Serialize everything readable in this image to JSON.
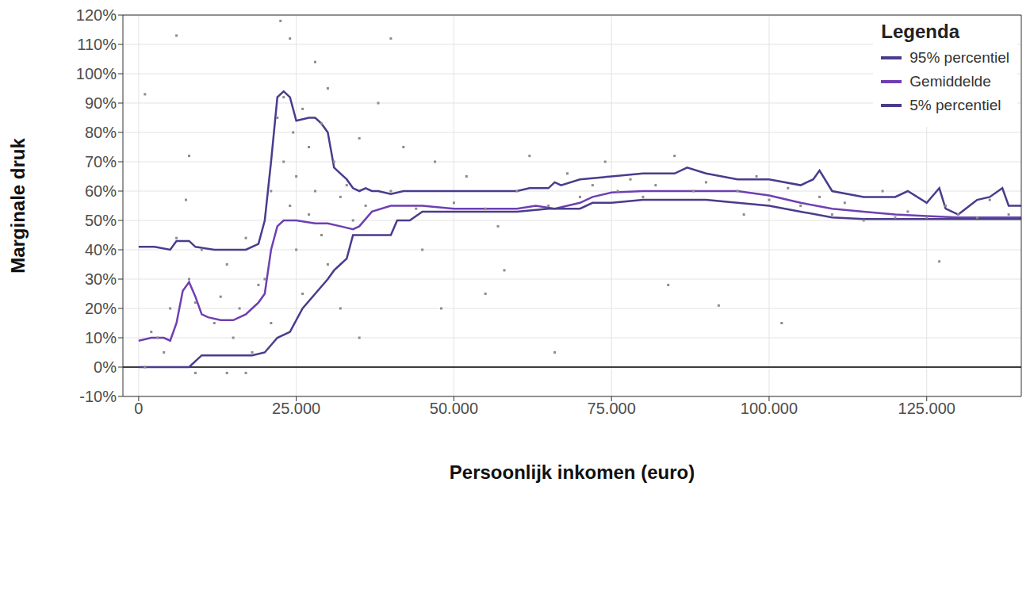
{
  "chart_data": {
    "type": "line",
    "x_label": "Persoonlijk inkomen (euro)",
    "y_label": "Marginale druk",
    "legend_title": "Legenda",
    "legend": "top-right",
    "grid": true,
    "xlim": [
      -2500,
      140000
    ],
    "xticks": [
      0,
      {
        "value": 25000,
        "label": "25.000"
      },
      {
        "value": 50000,
        "label": "50.000"
      },
      {
        "value": 75000,
        "label": "75.000"
      },
      {
        "value": 100000,
        "label": "100.000"
      },
      {
        "value": 125000,
        "label": "125.000"
      }
    ],
    "ylim": [
      -10,
      120
    ],
    "yticks": [
      {
        "value": -10,
        "label": "-10%"
      },
      {
        "value": 0,
        "label": "0%"
      },
      {
        "value": 10,
        "label": "10%"
      },
      {
        "value": 20,
        "label": "20%"
      },
      {
        "value": 30,
        "label": "30%"
      },
      {
        "value": 40,
        "label": "40%"
      },
      {
        "value": 50,
        "label": "50%"
      },
      {
        "value": 60,
        "label": "60%"
      },
      {
        "value": 70,
        "label": "70%"
      },
      {
        "value": 80,
        "label": "80%"
      },
      {
        "value": 90,
        "label": "90%"
      },
      {
        "value": 100,
        "label": "100%"
      },
      {
        "value": 110,
        "label": "110%"
      },
      {
        "value": 120,
        "label": "120%"
      }
    ],
    "hline": 0,
    "series": [
      {
        "type": "scatter",
        "color": "#8c8c8c",
        "marker": "square",
        "x": [
          1000,
          3000,
          4000,
          2000,
          5000,
          6000,
          8000,
          9000,
          10000,
          12000,
          13000,
          14000,
          15000,
          16000,
          17000,
          18000,
          19000,
          9000,
          14000,
          17000,
          6000,
          1000,
          8000,
          7500,
          21000,
          22000,
          23000,
          23000,
          24000,
          24500,
          25000,
          25000,
          26000,
          27000,
          27000,
          28000,
          29000,
          29000,
          30000,
          30000,
          31000,
          32000,
          33000,
          34000,
          35000,
          22500,
          24000,
          28000,
          20000,
          21000,
          26000,
          32000,
          35000,
          36000,
          38000,
          40000,
          40000,
          42000,
          44000,
          45000,
          47000,
          50000,
          52000,
          55000,
          57000,
          60000,
          62000,
          65000,
          68000,
          70000,
          72000,
          74000,
          48000,
          55000,
          66000,
          58000,
          76000,
          78000,
          80000,
          82000,
          85000,
          88000,
          90000,
          92000,
          95000,
          98000,
          100000,
          102000,
          103000,
          105000,
          108000,
          110000,
          112000,
          115000,
          118000,
          120000,
          122000,
          125000,
          127000,
          128000,
          130000,
          133000,
          135000,
          138000,
          84000,
          96000
        ],
        "values": [
          0,
          10,
          5,
          12,
          20,
          44,
          30,
          22,
          40,
          15,
          24,
          35,
          10,
          20,
          44,
          5,
          28,
          -2,
          -2,
          -2,
          113,
          93,
          72,
          57,
          60,
          85,
          92,
          70,
          55,
          80,
          40,
          65,
          88,
          52,
          75,
          60,
          45,
          83,
          95,
          35,
          70,
          58,
          62,
          50,
          78,
          118,
          112,
          104,
          30,
          15,
          25,
          20,
          10,
          55,
          90,
          60,
          112,
          75,
          54,
          40,
          70,
          56,
          65,
          54,
          48,
          60,
          72,
          55,
          66,
          58,
          62,
          70,
          20,
          25,
          5,
          33,
          60,
          64,
          58,
          62,
          72,
          60,
          63,
          21,
          60,
          65,
          57,
          15,
          61,
          55,
          58,
          52,
          56,
          50,
          60,
          51,
          53,
          51,
          36,
          55,
          52,
          51,
          57,
          52,
          28,
          52
        ]
      },
      {
        "type": "line",
        "name": "95% percentiel",
        "color": "#4b3b8c",
        "x": [
          0,
          2500,
          5000,
          6000,
          8000,
          9000,
          12000,
          17000,
          19000,
          20000,
          21000,
          22000,
          23000,
          24000,
          25000,
          27000,
          28000,
          29000,
          30000,
          31000,
          32000,
          33000,
          34000,
          35000,
          36000,
          37000,
          38000,
          40000,
          42000,
          45000,
          50000,
          55000,
          60000,
          62000,
          65000,
          66000,
          67000,
          70000,
          75000,
          80000,
          85000,
          87000,
          90000,
          95000,
          100000,
          105000,
          107000,
          108000,
          110000,
          115000,
          120000,
          122000,
          125000,
          127000,
          128000,
          130000,
          133000,
          135000,
          137000,
          138000,
          140000
        ],
        "values": [
          41,
          41,
          40,
          43,
          43,
          41,
          40,
          40,
          42,
          50,
          70,
          92,
          94,
          92,
          84,
          85,
          85,
          83,
          80,
          68,
          66,
          64,
          61,
          60,
          61,
          60,
          60,
          59,
          60,
          60,
          60,
          60,
          60,
          61,
          61,
          63,
          62,
          64,
          65,
          66,
          66,
          68,
          66,
          64,
          64,
          62,
          64,
          67,
          60,
          58,
          58,
          60,
          56,
          61,
          54,
          52,
          57,
          58,
          61,
          55,
          55
        ]
      },
      {
        "type": "line",
        "name": "Gemiddelde",
        "color": "#6e3fb3",
        "x": [
          0,
          2000,
          4000,
          5000,
          6000,
          7000,
          8000,
          9000,
          10000,
          11000,
          13000,
          15000,
          17000,
          18000,
          19000,
          20000,
          21000,
          22000,
          23000,
          25000,
          28000,
          30000,
          32000,
          34000,
          35000,
          37000,
          40000,
          45000,
          50000,
          60000,
          63000,
          66000,
          70000,
          72000,
          75000,
          80000,
          90000,
          95000,
          100000,
          105000,
          110000,
          115000,
          120000,
          125000,
          130000,
          135000,
          140000
        ],
        "values": [
          9,
          10,
          10,
          9,
          15,
          26,
          29,
          24,
          18,
          17,
          16,
          16,
          18,
          20,
          22,
          25,
          40,
          48,
          50,
          50,
          49,
          49,
          48,
          47,
          48,
          53,
          55,
          55,
          54,
          54,
          55,
          54,
          56,
          58,
          59.5,
          60,
          60,
          60,
          58.5,
          56,
          54,
          53,
          52,
          51.5,
          51,
          51,
          51
        ]
      },
      {
        "type": "line",
        "name": "5% percentiel",
        "color": "#4b3b8c",
        "x": [
          0,
          7000,
          8000,
          10000,
          12000,
          15000,
          18000,
          20000,
          22000,
          24000,
          26000,
          28000,
          30000,
          31000,
          32000,
          33000,
          34000,
          37000,
          40000,
          41000,
          43000,
          45000,
          50000,
          60000,
          65000,
          70000,
          72000,
          75000,
          80000,
          90000,
          95000,
          100000,
          105000,
          110000,
          115000,
          140000
        ],
        "values": [
          0,
          0,
          0,
          4,
          4,
          4,
          4,
          5,
          10,
          12,
          20,
          25,
          30,
          33,
          35,
          37,
          45,
          45,
          45,
          50,
          50,
          53,
          53,
          53,
          54,
          54,
          56,
          56,
          57,
          57,
          56,
          55,
          53,
          51,
          50.5,
          50.5
        ]
      }
    ]
  }
}
